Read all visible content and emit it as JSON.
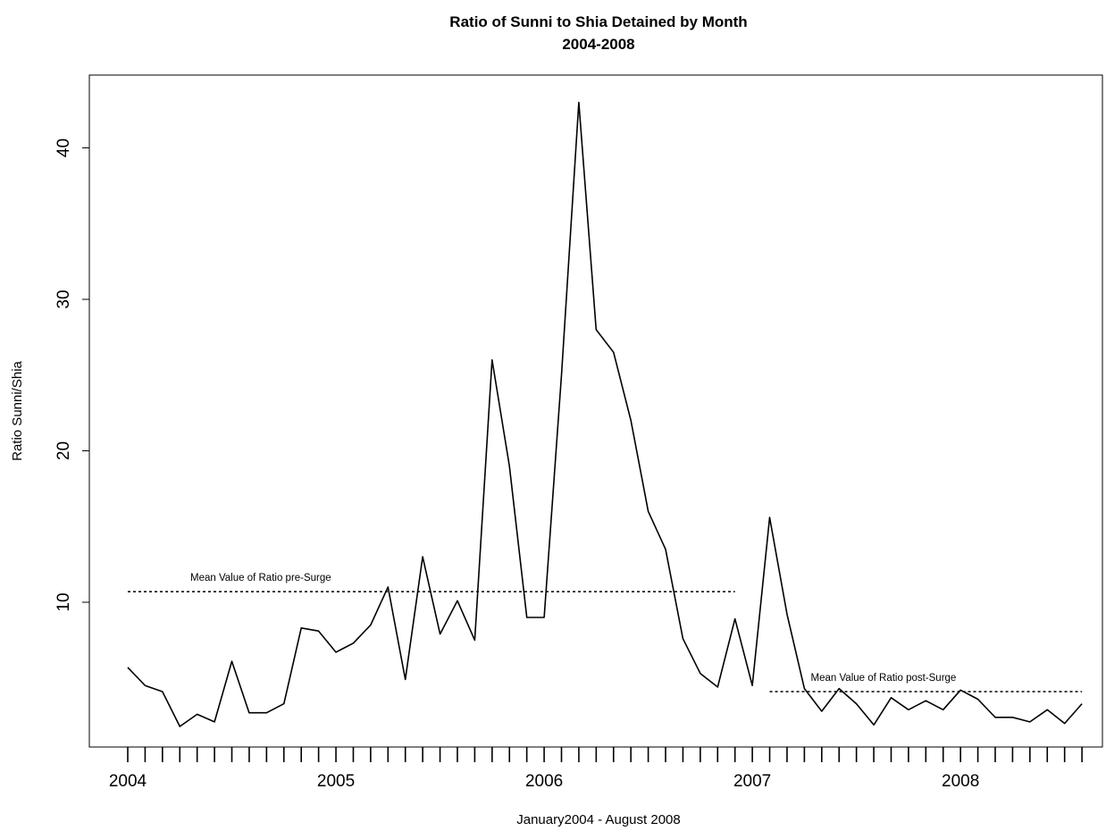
{
  "chart_data": {
    "type": "line",
    "title": "Ratio of Sunni to Shia Detained by Month",
    "subtitle": "2004-2008",
    "xlabel": "January2004 - August 2008",
    "ylabel": "Ratio Sunni/Shia",
    "x_ticks": [
      "2004",
      "2005",
      "2006",
      "2007",
      "2008"
    ],
    "y_ticks": [
      10,
      20,
      30,
      40
    ],
    "ylim": [
      0,
      45
    ],
    "xlim": [
      "2004-01",
      "2008-08"
    ],
    "grid": false,
    "series": [
      {
        "x": [
          "2004-01",
          "2004-02",
          "2004-03",
          "2004-04",
          "2004-05",
          "2004-06",
          "2004-07",
          "2004-08",
          "2004-09",
          "2004-10",
          "2004-11",
          "2004-12",
          "2005-01",
          "2005-02",
          "2005-03",
          "2005-04",
          "2005-05",
          "2005-06",
          "2005-07",
          "2005-08",
          "2005-09",
          "2005-10",
          "2005-11",
          "2005-12",
          "2006-01",
          "2006-02",
          "2006-03",
          "2006-04",
          "2006-05",
          "2006-06",
          "2006-07",
          "2006-08",
          "2006-09",
          "2006-10",
          "2006-11",
          "2006-12",
          "2007-01",
          "2007-02",
          "2007-03",
          "2007-04",
          "2007-05",
          "2007-06",
          "2007-07",
          "2007-08",
          "2007-09",
          "2007-10",
          "2007-11",
          "2007-12",
          "2008-01",
          "2008-02",
          "2008-03",
          "2008-04",
          "2008-05",
          "2008-06",
          "2008-07",
          "2008-08"
        ],
        "values": [
          5.7,
          4.5,
          4.1,
          1.8,
          2.6,
          2.1,
          6.1,
          2.7,
          2.7,
          3.3,
          8.3,
          8.1,
          6.7,
          7.3,
          8.5,
          11.0,
          4.9,
          13.0,
          7.9,
          10.1,
          7.5,
          26.0,
          19.0,
          9.0,
          9.0,
          25.0,
          43.0,
          28.0,
          26.5,
          22.0,
          16.0,
          13.5,
          7.6,
          5.3,
          4.4,
          8.9,
          4.5,
          15.6,
          9.2,
          4.3,
          2.8,
          4.3,
          3.3,
          1.9,
          3.7,
          2.9,
          3.5,
          2.9,
          4.2,
          3.6,
          2.4,
          2.4,
          2.1,
          2.9,
          2.0,
          3.3
        ]
      }
    ],
    "annotations": [
      {
        "text": "Mean Value of Ratio pre-Surge",
        "y": 10.7,
        "x_start": "2004-01",
        "x_end": "2006-12",
        "style": "dotted"
      },
      {
        "text": "Mean Value of Ratio post-Surge",
        "y": 4.1,
        "x_start": "2007-02",
        "x_end": "2008-08",
        "style": "dotted"
      }
    ]
  }
}
